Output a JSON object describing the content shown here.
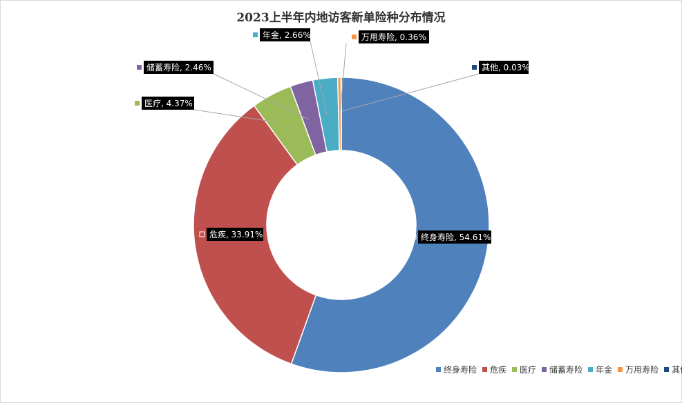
{
  "chart_data": {
    "type": "pie",
    "title": "2023上半年内地访客新单险种分布情况",
    "donut": true,
    "legend_position": "bottom-right",
    "slices": [
      {
        "name": "终身寿险",
        "value": 54.61,
        "label": "终身寿险, 54.61%",
        "color": "#4f81bd"
      },
      {
        "name": "危疾",
        "value": 33.91,
        "label": "危疾, 33.91%",
        "color": "#c0504d"
      },
      {
        "name": "医疗",
        "value": 4.37,
        "label": "医疗, 4.37%",
        "color": "#9bbb59"
      },
      {
        "name": "储蓄寿险",
        "value": 2.46,
        "label": "储蓄寿险, 2.46%",
        "color": "#8064a2"
      },
      {
        "name": "年金",
        "value": 2.66,
        "label": "年金, 2.66%",
        "color": "#4bacc6"
      },
      {
        "name": "万用寿险",
        "value": 0.36,
        "label": "万用寿险, 0.36%",
        "color": "#f79646"
      },
      {
        "name": "其他",
        "value": 0.03,
        "label": "其他, 0.03%",
        "color": "#1f497d"
      }
    ]
  }
}
